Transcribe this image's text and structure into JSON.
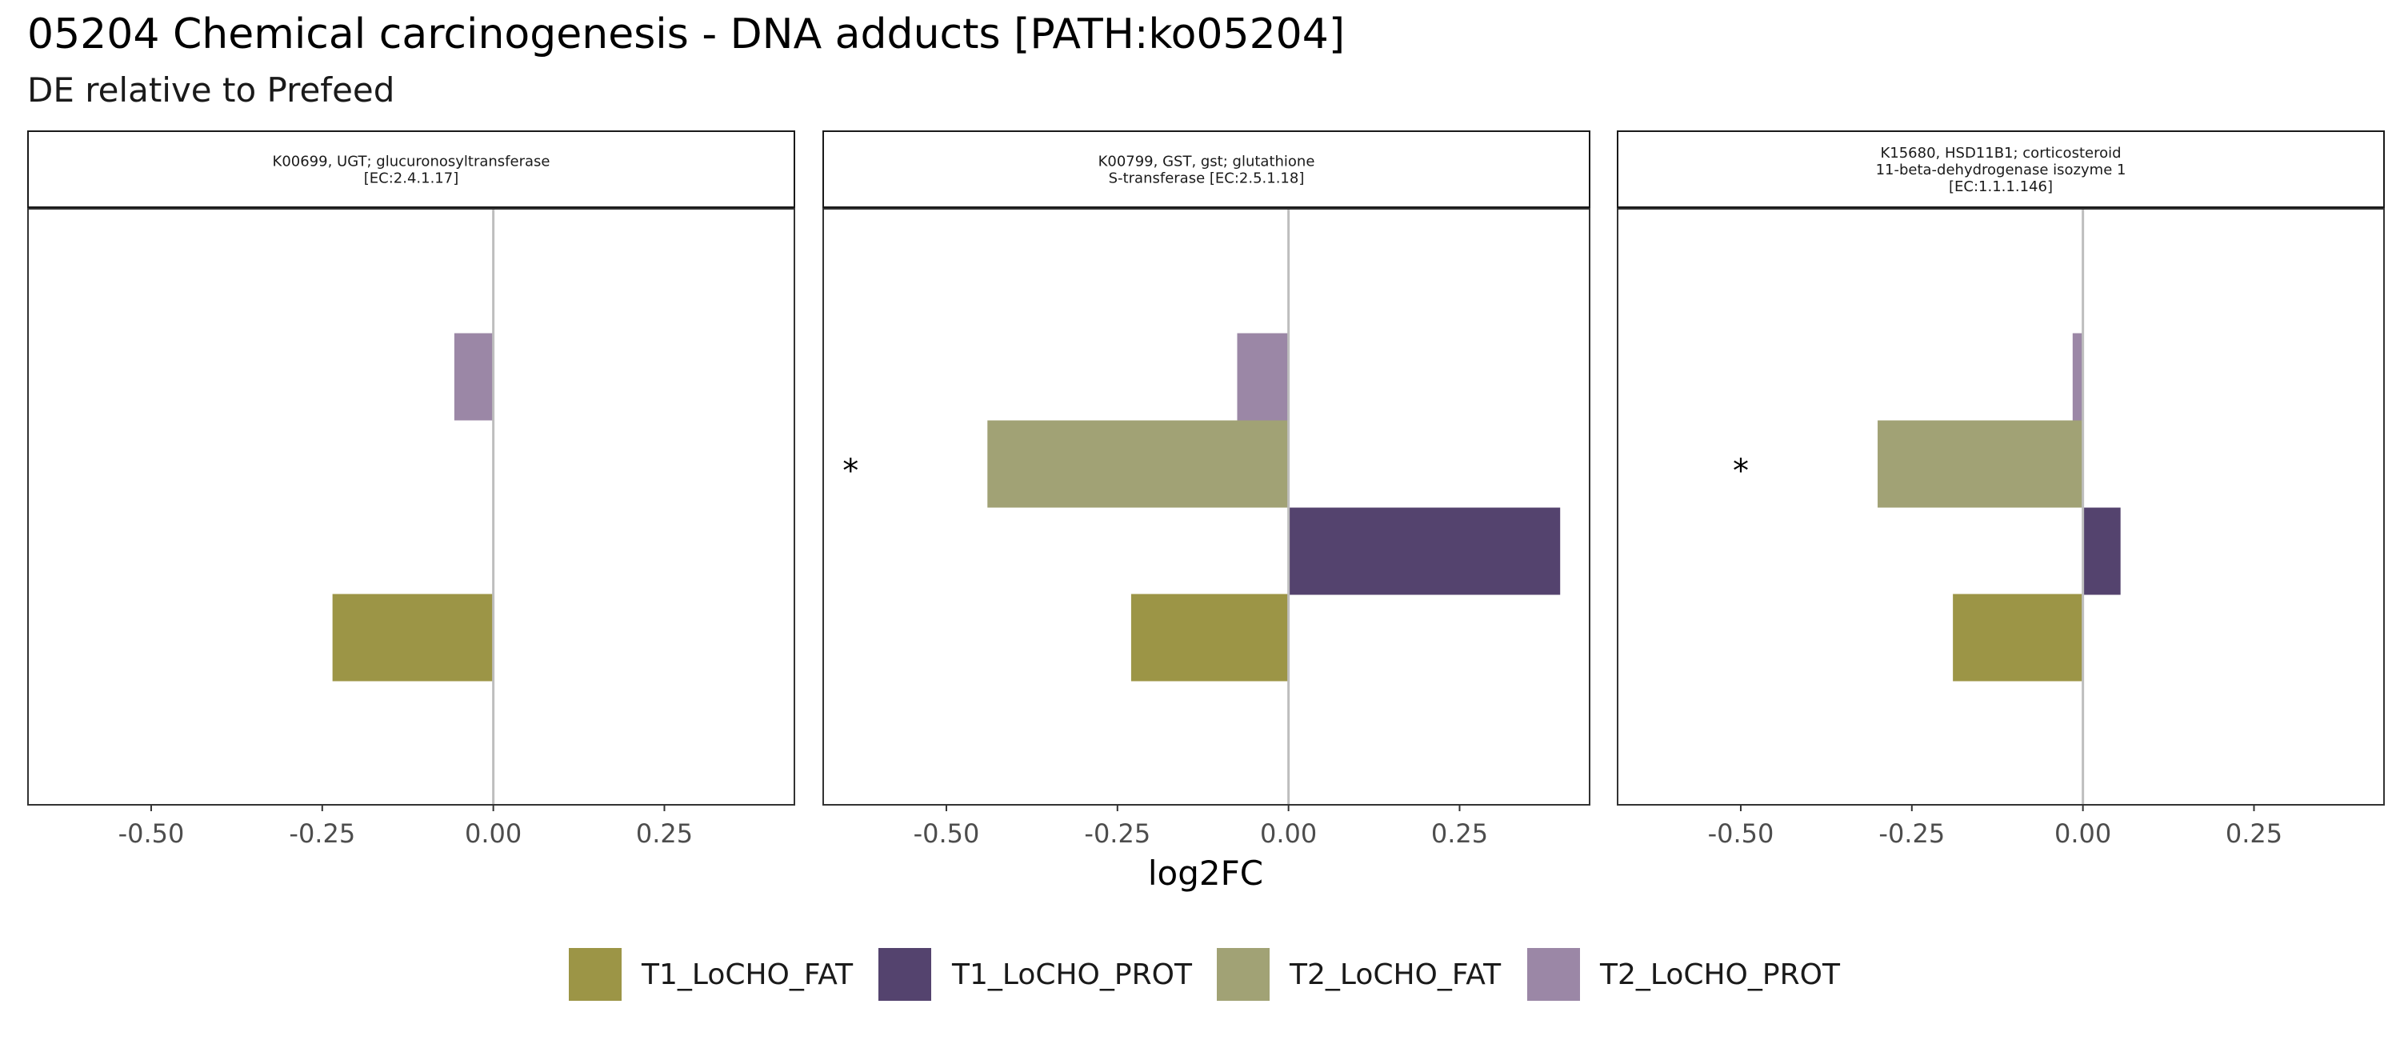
{
  "title": "05204 Chemical carcinogenesis - DNA adducts [PATH:ko05204]",
  "subtitle": "DE relative to Prefeed",
  "chart_data": {
    "type": "bar",
    "orientation": "horizontal",
    "xlabel": "log2FC",
    "ylabel": "",
    "xlim": [
      -0.68,
      0.44
    ],
    "xticks": [
      -0.5,
      -0.25,
      0.0,
      0.25
    ],
    "xtick_labels": [
      "-0.50",
      "-0.25",
      "0.00",
      "0.25"
    ],
    "zero_line": true,
    "grid": false,
    "legend_position": "bottom",
    "categories": [
      "T1_LoCHO_FAT",
      "T1_LoCHO_PROT",
      "T2_LoCHO_FAT",
      "T2_LoCHO_PROT"
    ],
    "colors": {
      "T1_LoCHO_FAT": "#9c9546",
      "T1_LoCHO_PROT": "#54436e",
      "T2_LoCHO_FAT": "#a1a275",
      "T2_LoCHO_PROT": "#9b87a6"
    },
    "panels": [
      {
        "strip_lines": [
          "K00699, UGT; glucuronosyltransferase",
          "[EC:2.4.1.17]"
        ],
        "values": [
          {
            "series": "T1_LoCHO_FAT",
            "value": -0.235
          },
          {
            "series": "T2_LoCHO_PROT",
            "value": -0.057
          }
        ],
        "significance": []
      },
      {
        "strip_lines": [
          "K00799, GST, gst; glutathione",
          "S-transferase [EC:2.5.1.18]"
        ],
        "values": [
          {
            "series": "T1_LoCHO_FAT",
            "value": -0.23
          },
          {
            "series": "T1_LoCHO_PROT",
            "value": 0.397
          },
          {
            "series": "T2_LoCHO_FAT",
            "value": -0.44
          },
          {
            "series": "T2_LoCHO_PROT",
            "value": -0.075
          }
        ],
        "significance": [
          {
            "series": "T2_LoCHO_FAT",
            "symbol": "*",
            "x": -0.64
          }
        ]
      },
      {
        "strip_lines": [
          "K15680, HSD11B1; corticosteroid",
          "11-beta-dehydrogenase isozyme 1",
          "[EC:1.1.1.146]"
        ],
        "values": [
          {
            "series": "T1_LoCHO_FAT",
            "value": -0.19
          },
          {
            "series": "T1_LoCHO_PROT",
            "value": 0.055
          },
          {
            "series": "T2_LoCHO_FAT",
            "value": -0.3
          },
          {
            "series": "T2_LoCHO_PROT",
            "value": -0.015
          }
        ],
        "significance": [
          {
            "series": "T2_LoCHO_FAT",
            "symbol": "*",
            "x": -0.5
          }
        ]
      }
    ]
  }
}
